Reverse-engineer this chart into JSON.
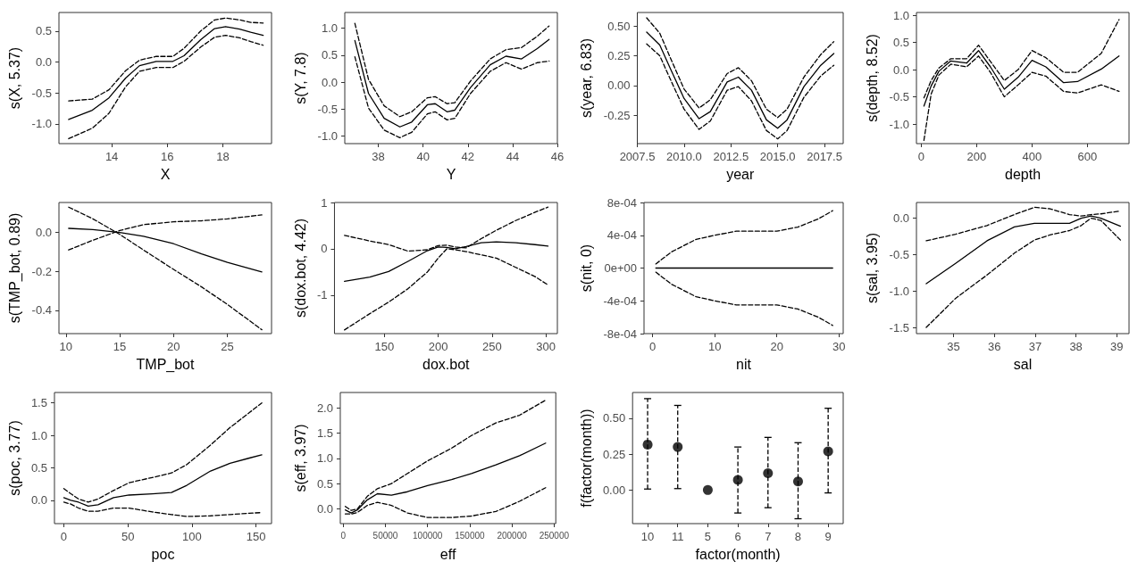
{
  "chart_data": [
    {
      "type": "line",
      "xlabel": "X",
      "ylabel": "s(X, 5.37)",
      "grid": false,
      "xlim": [
        12.1,
        19.75
      ],
      "xticks": [
        14,
        16,
        18
      ],
      "ylim": [
        -1.32,
        0.8
      ],
      "yticks": [
        {
          "value": -1,
          "label": "-1.0"
        },
        -0.5,
        {
          "value": 0,
          "label": "0.0"
        },
        0.5
      ],
      "x": [
        12.45,
        13.3,
        13.9,
        14.5,
        15.0,
        15.6,
        16.2,
        16.6,
        17.2,
        17.7,
        18.1,
        18.6,
        19.0,
        19.45
      ],
      "series": [
        {
          "color": "#000000",
          "line_style": "solid",
          "values": [
            -0.93,
            -0.78,
            -0.58,
            -0.26,
            -0.06,
            0.01,
            0.01,
            0.1,
            0.36,
            0.54,
            0.57,
            0.53,
            0.48,
            0.43
          ]
        },
        {
          "color": "#000000",
          "line_style": "dashed",
          "values": [
            -0.63,
            -0.6,
            -0.45,
            -0.14,
            0.03,
            0.09,
            0.09,
            0.22,
            0.5,
            0.68,
            0.71,
            0.68,
            0.64,
            0.63
          ]
        },
        {
          "color": "#000000",
          "line_style": "dashed",
          "values": [
            -1.24,
            -1.07,
            -0.83,
            -0.4,
            -0.15,
            -0.09,
            -0.09,
            0.01,
            0.24,
            0.4,
            0.43,
            0.39,
            0.33,
            0.27
          ]
        }
      ]
    },
    {
      "type": "line",
      "xlabel": "Y",
      "ylabel": "s(Y, 7.8)",
      "grid": false,
      "xlim": [
        36.5,
        46
      ],
      "xticks": [
        38,
        40,
        42,
        44,
        46
      ],
      "ylim": [
        -1.14,
        1.29
      ],
      "yticks": [
        {
          "value": -1,
          "label": "-1.0"
        },
        -0.5,
        {
          "value": 0,
          "label": "0.0"
        },
        0.5,
        {
          "value": 1,
          "label": "1.0"
        }
      ],
      "x": [
        36.95,
        37.56,
        38.26,
        38.96,
        39.49,
        40.19,
        40.54,
        41.07,
        41.42,
        42.12,
        43.0,
        43.7,
        44.4,
        45.1,
        45.63
      ],
      "series": [
        {
          "color": "#000000",
          "line_style": "solid",
          "values": [
            0.77,
            -0.21,
            -0.67,
            -0.83,
            -0.74,
            -0.42,
            -0.4,
            -0.55,
            -0.52,
            -0.1,
            0.32,
            0.48,
            0.43,
            0.62,
            0.79
          ]
        },
        {
          "color": "#000000",
          "line_style": "dashed",
          "values": [
            1.09,
            0.05,
            -0.44,
            -0.64,
            -0.55,
            -0.29,
            -0.27,
            -0.4,
            -0.38,
            0.02,
            0.43,
            0.6,
            0.64,
            0.85,
            1.04
          ]
        },
        {
          "color": "#000000",
          "line_style": "dashed",
          "values": [
            0.47,
            -0.48,
            -0.89,
            -1.03,
            -0.93,
            -0.59,
            -0.55,
            -0.7,
            -0.67,
            -0.21,
            0.2,
            0.36,
            0.24,
            0.36,
            0.39
          ]
        }
      ]
    },
    {
      "type": "line",
      "xlabel": "year",
      "ylabel": "s(year, 6.83)",
      "grid": false,
      "xlim": [
        2007.5,
        2018.5
      ],
      "xticks": [
        2007.5,
        {
          "value": 2010,
          "label": "2010.0"
        },
        2012.5,
        {
          "value": 2015,
          "label": "2015.0"
        },
        2017.5
      ],
      "ylim": [
        -0.49,
        0.615
      ],
      "yticks": [
        {
          "value": -0.25,
          "label": "-0.25"
        },
        {
          "value": 0,
          "label": "0.00"
        },
        {
          "value": 0.25,
          "label": "0.25"
        },
        {
          "value": 0.5,
          "label": "0.50"
        }
      ],
      "x": [
        2008,
        2008.7,
        2009.3,
        2010,
        2010.8,
        2011.4,
        2012.3,
        2012.9,
        2013.6,
        2014.4,
        2015,
        2015.5,
        2016.4,
        2017.3,
        2018
      ],
      "series": [
        {
          "color": "#000000",
          "line_style": "solid",
          "values": [
            0.45,
            0.34,
            0.13,
            -0.11,
            -0.28,
            -0.22,
            0.03,
            0.07,
            -0.04,
            -0.29,
            -0.36,
            -0.29,
            -0.01,
            0.17,
            0.27
          ]
        },
        {
          "color": "#000000",
          "line_style": "dashed",
          "values": [
            0.57,
            0.44,
            0.22,
            -0.03,
            -0.19,
            -0.12,
            0.1,
            0.15,
            0.04,
            -0.2,
            -0.27,
            -0.2,
            0.07,
            0.26,
            0.37
          ]
        },
        {
          "color": "#000000",
          "line_style": "dashed",
          "values": [
            0.35,
            0.25,
            0.04,
            -0.2,
            -0.37,
            -0.3,
            -0.04,
            -0.01,
            -0.13,
            -0.38,
            -0.45,
            -0.38,
            -0.1,
            0.08,
            0.17
          ]
        }
      ]
    },
    {
      "type": "line",
      "xlabel": "depth",
      "ylabel": "s(depth, 8.52)",
      "grid": false,
      "xlim": [
        -17,
        750
      ],
      "xticks": [
        0,
        200,
        400,
        600
      ],
      "ylim": [
        -1.36,
        1.05
      ],
      "yticks": [
        {
          "value": -1,
          "label": "-1.0"
        },
        -0.5,
        {
          "value": 0,
          "label": "0.0"
        },
        0.5,
        {
          "value": 1,
          "label": "1.0"
        }
      ],
      "x": [
        10,
        36,
        64,
        107,
        164,
        207,
        250,
        300,
        350,
        400,
        450,
        514,
        564,
        650,
        714
      ],
      "series": [
        {
          "color": "#000000",
          "line_style": "solid",
          "values": [
            -0.67,
            -0.3,
            -0.03,
            0.16,
            0.12,
            0.35,
            0.05,
            -0.36,
            -0.14,
            0.17,
            0.05,
            -0.24,
            -0.22,
            0.01,
            0.25
          ]
        },
        {
          "color": "#000000",
          "line_style": "dashed",
          "values": [
            -0.52,
            -0.2,
            0.03,
            0.2,
            0.2,
            0.45,
            0.15,
            -0.2,
            0.0,
            0.35,
            0.22,
            -0.05,
            -0.05,
            0.3,
            0.92
          ]
        },
        {
          "color": "#000000",
          "line_style": "dashed",
          "values": [
            -1.3,
            -0.45,
            -0.1,
            0.1,
            0.05,
            0.25,
            -0.05,
            -0.5,
            -0.28,
            -0.05,
            -0.12,
            -0.4,
            -0.43,
            -0.28,
            -0.4
          ]
        }
      ]
    },
    {
      "type": "line",
      "xlabel": "TMP_bot",
      "ylabel": "s(TMP_bot, 0.89)",
      "grid": false,
      "xlim": [
        9.35,
        29.1
      ],
      "xticks": [
        10,
        15,
        20,
        25
      ],
      "ylim": [
        -0.52,
        0.154
      ],
      "yticks": [
        -0.4,
        -0.2,
        {
          "value": 0,
          "label": "0.0"
        }
      ],
      "x": [
        10.25,
        12.5,
        15,
        17.2,
        20,
        22.6,
        25,
        28.2
      ],
      "series": [
        {
          "color": "#000000",
          "line_style": "solid",
          "values": [
            0.021,
            0.015,
            0.0,
            -0.02,
            -0.058,
            -0.11,
            -0.154,
            -0.203
          ]
        },
        {
          "color": "#000000",
          "line_style": "dashed",
          "values": [
            -0.09,
            -0.04,
            0.01,
            0.04,
            0.055,
            0.06,
            0.07,
            0.09
          ]
        },
        {
          "color": "#000000",
          "line_style": "dashed",
          "values": [
            0.13,
            0.07,
            -0.01,
            -0.09,
            -0.19,
            -0.28,
            -0.37,
            -0.5
          ]
        }
      ]
    },
    {
      "type": "line",
      "xlabel": "dox.bot",
      "ylabel": "s(dox.bot, 4.42)",
      "grid": false,
      "xlim": [
        103.7,
        310.7
      ],
      "xticks": [
        150,
        200,
        250,
        300
      ],
      "ylim": [
        -1.83,
        1.0
      ],
      "yticks": [
        -1,
        0,
        1
      ],
      "x": [
        113,
        136.5,
        154,
        172,
        190,
        200,
        208,
        216,
        226,
        240,
        254,
        272,
        290,
        302
      ],
      "series": [
        {
          "color": "#000000",
          "line_style": "solid",
          "values": [
            -0.7,
            -0.61,
            -0.49,
            -0.27,
            -0.04,
            0.04,
            0.03,
            0.0,
            0.05,
            0.13,
            0.15,
            0.13,
            0.09,
            0.06
          ]
        },
        {
          "color": "#000000",
          "line_style": "dashed",
          "values": [
            0.29,
            0.17,
            0.09,
            -0.05,
            -0.02,
            0.07,
            0.08,
            0.04,
            0.02,
            0.22,
            0.4,
            0.61,
            0.79,
            0.9
          ]
        },
        {
          "color": "#000000",
          "line_style": "dashed",
          "values": [
            -1.75,
            -1.4,
            -1.15,
            -0.86,
            -0.5,
            -0.2,
            0.0,
            -0.02,
            -0.06,
            -0.13,
            -0.2,
            -0.4,
            -0.6,
            -0.78
          ]
        }
      ]
    },
    {
      "type": "line",
      "xlabel": "nit",
      "ylabel": "s(nit, 0)",
      "grid": false,
      "xlim": [
        -1.4,
        30.7
      ],
      "xticks": [
        0,
        10,
        20,
        30
      ],
      "ylim": [
        -0.0008,
        0.0008
      ],
      "yticks": [
        {
          "value": -0.0008,
          "label": "-8e-04"
        },
        {
          "value": -0.0004,
          "label": "-4e-04"
        },
        {
          "value": 0,
          "label": "0e+00"
        },
        {
          "value": 0.0004,
          "label": "4e-04"
        },
        {
          "value": 0.0008,
          "label": "8e-04"
        }
      ],
      "x": [
        0.5,
        3.1,
        7,
        10,
        13.5,
        20,
        23.4,
        26.7,
        29
      ],
      "series": [
        {
          "color": "#000000",
          "line_style": "solid",
          "values": [
            0,
            0,
            0,
            0,
            0,
            0,
            0,
            0,
            0
          ]
        },
        {
          "color": "#000000",
          "line_style": "dashed",
          "values": [
            5e-05,
            0.0002,
            0.00035,
            0.0004,
            0.00045,
            0.00045,
            0.0005,
            0.0006,
            0.0007
          ]
        },
        {
          "color": "#000000",
          "line_style": "dashed",
          "values": [
            -5e-05,
            -0.0002,
            -0.00035,
            -0.0004,
            -0.00045,
            -0.00045,
            -0.0005,
            -0.0006,
            -0.0007
          ]
        }
      ]
    },
    {
      "type": "line",
      "xlabel": "sal",
      "ylabel": "s(sal, 3.95)",
      "grid": false,
      "xlim": [
        34.09,
        39.3
      ],
      "xticks": [
        35,
        36,
        37,
        38,
        39
      ],
      "ylim": [
        -1.585,
        0.216
      ],
      "yticks": [
        -1.5,
        {
          "value": -1,
          "label": "-1.0"
        },
        -0.5,
        {
          "value": 0,
          "label": "0.0"
        }
      ],
      "x": [
        34.33,
        35.05,
        35.82,
        36.49,
        36.98,
        37.36,
        37.84,
        38.13,
        38.37,
        38.61,
        39.09
      ],
      "series": [
        {
          "color": "#000000",
          "line_style": "solid",
          "values": [
            -0.9,
            -0.62,
            -0.31,
            -0.12,
            -0.07,
            -0.07,
            -0.07,
            0.0,
            0.03,
            0.0,
            -0.11
          ]
        },
        {
          "color": "#000000",
          "line_style": "dashed",
          "values": [
            -0.31,
            -0.22,
            -0.1,
            0.05,
            0.15,
            0.13,
            0.05,
            0.03,
            0.05,
            0.06,
            0.1
          ]
        },
        {
          "color": "#000000",
          "line_style": "dashed",
          "values": [
            -1.5,
            -1.1,
            -0.78,
            -0.48,
            -0.3,
            -0.23,
            -0.17,
            -0.1,
            0.0,
            -0.03,
            -0.3
          ]
        }
      ]
    },
    {
      "type": "line",
      "xlabel": "poc",
      "ylabel": "s(poc, 3.77)",
      "grid": false,
      "xlim": [
        -7.3,
        162.1
      ],
      "xticks": [
        0,
        50,
        100,
        150
      ],
      "ylim": [
        -0.36,
        1.66
      ],
      "yticks": [
        {
          "value": 0,
          "label": "0.0"
        },
        0.5,
        {
          "value": 1,
          "label": "1.0"
        },
        1.5
      ],
      "x": [
        0,
        5.5,
        11.5,
        19,
        26.7,
        38.8,
        50.9,
        69,
        84,
        96,
        114.5,
        129.7,
        144.8,
        154.5
      ],
      "series": [
        {
          "color": "#000000",
          "line_style": "solid",
          "values": [
            0.04,
            0.0,
            -0.03,
            -0.09,
            -0.07,
            0.04,
            0.08,
            0.1,
            0.12,
            0.23,
            0.45,
            0.57,
            0.65,
            0.7
          ]
        },
        {
          "color": "#000000",
          "line_style": "dashed",
          "values": [
            0.18,
            0.1,
            0.02,
            -0.03,
            0.02,
            0.15,
            0.27,
            0.35,
            0.42,
            0.55,
            0.85,
            1.12,
            1.35,
            1.5
          ]
        },
        {
          "color": "#000000",
          "line_style": "dashed",
          "values": [
            -0.03,
            -0.06,
            -0.12,
            -0.17,
            -0.17,
            -0.12,
            -0.12,
            -0.18,
            -0.22,
            -0.25,
            -0.24,
            -0.22,
            -0.2,
            -0.19
          ]
        }
      ]
    },
    {
      "type": "line",
      "xlabel": "eff",
      "ylabel": "s(eff, 3.97)",
      "grid": false,
      "xlim": [
        -3500,
        252000
      ],
      "xticks": [
        0,
        50000,
        100000,
        150000,
        200000,
        250000
      ],
      "ylim": [
        -0.29,
        2.3
      ],
      "yticks": [
        {
          "value": 0,
          "label": "0.0"
        },
        0.5,
        {
          "value": 1,
          "label": "1.0"
        },
        1.5,
        {
          "value": 2,
          "label": "2.0"
        }
      ],
      "x": [
        2400,
        9500,
        16700,
        28600,
        40500,
        57100,
        76200,
        100000,
        128500,
        152000,
        181000,
        209000,
        240000
      ],
      "series": [
        {
          "color": "#000000",
          "line_style": "solid",
          "values": [
            -0.02,
            -0.08,
            -0.02,
            0.18,
            0.3,
            0.27,
            0.34,
            0.46,
            0.58,
            0.7,
            0.87,
            1.05,
            1.3
          ]
        },
        {
          "color": "#000000",
          "line_style": "dashed",
          "values": [
            0.05,
            -0.03,
            0.0,
            0.25,
            0.4,
            0.5,
            0.7,
            0.95,
            1.2,
            1.45,
            1.7,
            1.85,
            2.15
          ]
        },
        {
          "color": "#000000",
          "line_style": "dashed",
          "values": [
            -0.1,
            -0.1,
            -0.07,
            0.07,
            0.13,
            0.07,
            -0.08,
            -0.17,
            -0.17,
            -0.14,
            -0.05,
            0.15,
            0.42
          ]
        }
      ]
    },
    {
      "type": "scatter",
      "xlabel": "factor(month)",
      "ylabel": "f(factor(month))",
      "grid": false,
      "marker": "circle",
      "line_style": "dashed",
      "color": "#000000",
      "categories": [
        "10",
        "11",
        "5",
        "6",
        "7",
        "8",
        "9"
      ],
      "ylim": [
        -0.234,
        0.68
      ],
      "yticks": [
        {
          "value": 0,
          "label": "0.00"
        },
        {
          "value": 0.25,
          "label": "0.25"
        },
        {
          "value": 0.5,
          "label": "0.50"
        }
      ],
      "values": [
        0.317,
        0.3,
        0,
        0.07,
        0.117,
        0.06,
        0.27
      ],
      "errors": [
        [
          0.31,
          0.32
        ],
        [
          0.29,
          0.29
        ],
        null,
        [
          0.23,
          0.23
        ],
        [
          0.24,
          0.25
        ],
        [
          0.26,
          0.27
        ],
        [
          0.29,
          0.3
        ]
      ]
    }
  ]
}
